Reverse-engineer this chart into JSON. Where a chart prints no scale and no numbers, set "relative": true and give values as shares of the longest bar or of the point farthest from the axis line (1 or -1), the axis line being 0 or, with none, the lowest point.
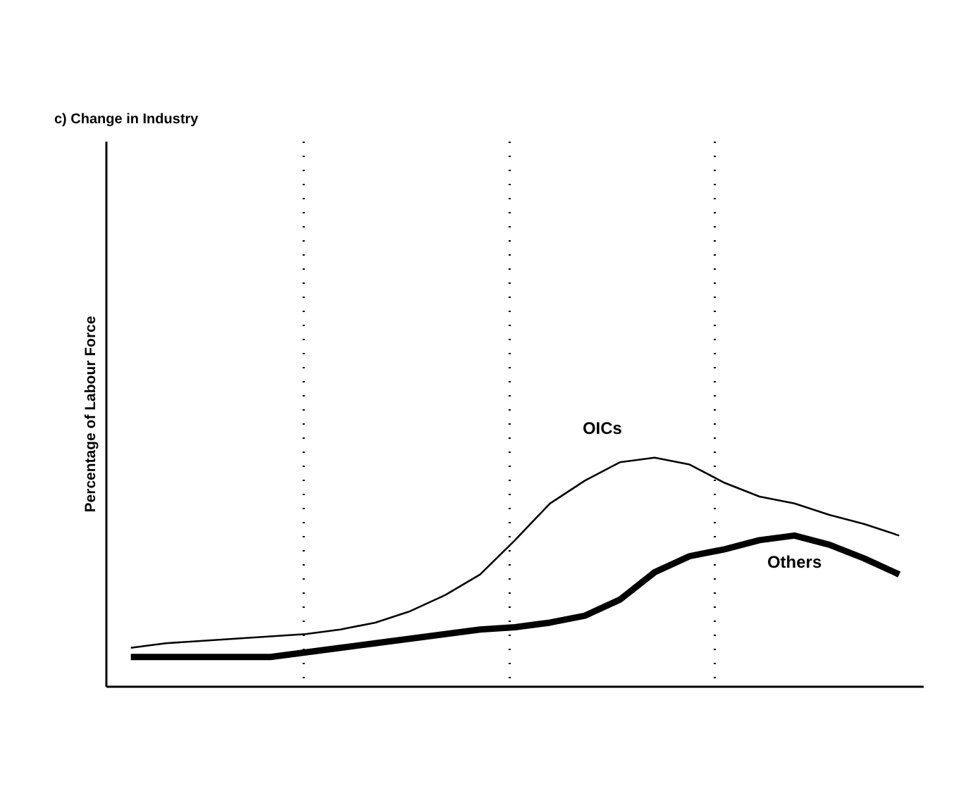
{
  "chart_data": {
    "type": "line",
    "title": "c) Change in Industry",
    "ylabel": "Percentage of Labour Force",
    "relative": true,
    "categories": [
      null,
      null,
      null,
      null,
      null,
      null,
      null,
      null,
      null,
      null,
      null,
      null,
      null,
      null,
      null,
      null,
      null,
      null,
      null,
      null,
      null,
      null,
      null
    ],
    "series": [
      {
        "name": "OICs",
        "color": "#000000",
        "values": [
          0.17,
          0.19,
          0.2,
          0.21,
          0.22,
          0.23,
          0.25,
          0.28,
          0.33,
          0.4,
          0.49,
          0.64,
          0.8,
          0.9,
          0.98,
          1,
          0.97,
          0.89,
          0.83,
          0.8,
          0.75,
          0.71,
          0.66
        ]
      },
      {
        "name": "Others",
        "color": "#000000",
        "values": [
          0.13,
          0.13,
          0.13,
          0.13,
          0.13,
          0.15,
          0.17,
          0.19,
          0.21,
          0.23,
          0.25,
          0.26,
          0.28,
          0.31,
          0.38,
          0.5,
          0.57,
          0.6,
          0.64,
          0.66,
          0.62,
          0.56,
          0.49
        ]
      }
    ],
    "line_style": "solid"
  }
}
